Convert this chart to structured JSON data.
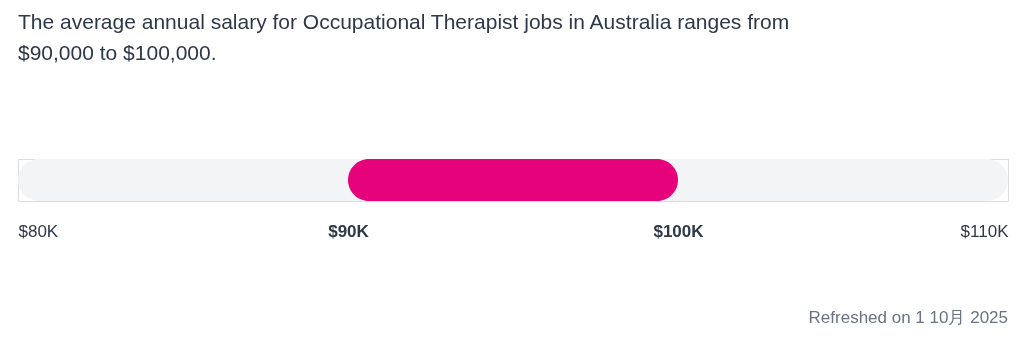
{
  "chart_data": {
    "type": "bar",
    "orientation": "horizontal",
    "title": "The average annual salary for Occupational Therapist jobs in Australia ranges from $90,000 to $100,000.",
    "categories": [
      null
    ],
    "base": [
      90000
    ],
    "values": [
      10000
    ],
    "color": "#e6027a",
    "xlim": [
      80000,
      110000
    ],
    "xticks": [
      {
        "value": 80000,
        "label": "$80K"
      },
      {
        "value": 90000,
        "label": "$90K"
      },
      {
        "value": 100000,
        "label": "$100K"
      },
      {
        "value": 110000,
        "label": "$110K"
      }
    ],
    "bands": [
      {
        "axis": "x",
        "from": 80000,
        "to": 110000,
        "color": "#f3f4f6"
      }
    ],
    "annotations": [
      "Refreshed on 1 10月 2025"
    ]
  }
}
